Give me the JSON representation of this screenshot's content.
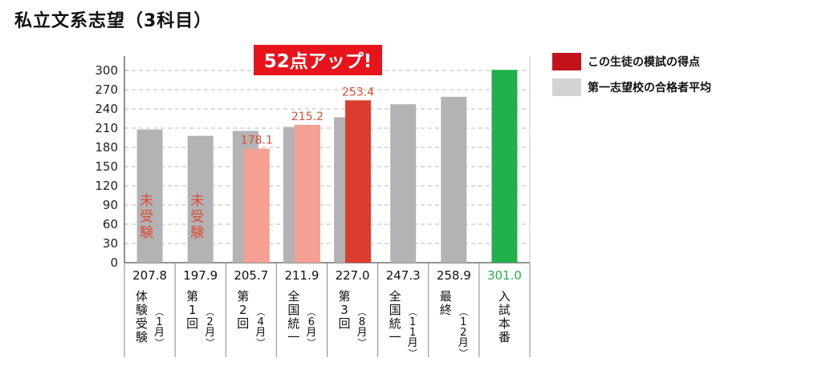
{
  "title": "私立文系志望（3科目）",
  "badge": "52点アップ!",
  "legend": [
    {
      "label": "この生徒の模試の得点",
      "color": "#c3121b"
    },
    {
      "label": "第一志望校の合格者平均",
      "color": "#d3d3d3"
    }
  ],
  "not_taken_label": "未受験",
  "colors": {
    "average": "#b3b3b5",
    "student_light": "#f5a092",
    "student_highlight": "#da3d2e",
    "student_label": "#e04a30",
    "final": "#22b04b"
  },
  "chart_data": {
    "type": "bar",
    "title": "私立文系志望（3科目）",
    "ylim": [
      0,
      300
    ],
    "yticks": [
      0,
      30,
      60,
      90,
      120,
      150,
      180,
      210,
      240,
      270,
      300
    ],
    "grid": true,
    "legend_position": "right",
    "categories": [
      "体験受験（1月）",
      "第1回（2月）",
      "第2回（4月）",
      "全国統一（6月）",
      "第3回（8月）",
      "全国統一（11月）",
      "最終（12月）",
      "入試本番"
    ],
    "category_labels": [
      {
        "main": "体験受験",
        "sub": "（1月）"
      },
      {
        "main": "第1回",
        "sub": "（2月）"
      },
      {
        "main": "第2回",
        "sub": "（4月）"
      },
      {
        "main": "全国統一",
        "sub": "（6月）"
      },
      {
        "main": "第3回",
        "sub": "（8月）"
      },
      {
        "main": "全国統一",
        "sub": "（11月）"
      },
      {
        "main": "最終",
        "sub": "（12月）"
      },
      {
        "main": "入試本番",
        "sub": ""
      }
    ],
    "series": [
      {
        "name": "第一志望校の合格者平均",
        "values": [
          207.8,
          197.9,
          205.7,
          211.9,
          227.0,
          247.3,
          258.9,
          301.0
        ]
      },
      {
        "name": "この生徒の模試の得点",
        "values": [
          null,
          null,
          178.1,
          215.2,
          253.4,
          null,
          null,
          null
        ]
      }
    ],
    "value_labels": [
      "207.8",
      "197.9",
      "205.7",
      "211.9",
      "227.0",
      "247.3",
      "258.9",
      "301.0"
    ],
    "student_labels": [
      null,
      null,
      "178.1",
      "215.2",
      "253.4",
      null,
      null,
      null
    ],
    "not_taken": [
      true,
      true,
      false,
      false,
      false,
      false,
      false,
      false
    ]
  }
}
